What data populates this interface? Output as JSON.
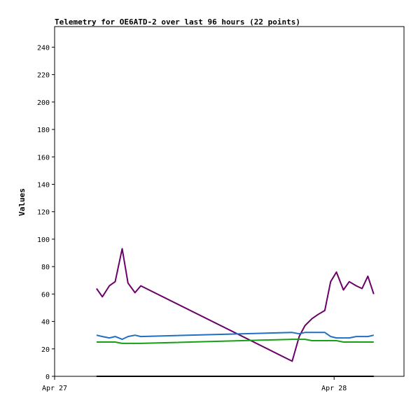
{
  "chart_data": {
    "type": "line",
    "title": "Telemetry for OE6ATD-2 over last 96 hours (22 points)",
    "xlabel": "",
    "ylabel": "Values",
    "ylim": [
      0,
      255
    ],
    "yticks": [
      0,
      20,
      40,
      60,
      80,
      100,
      120,
      140,
      160,
      180,
      200,
      220,
      240
    ],
    "xlim_hours": [
      0,
      30
    ],
    "xticks": [
      {
        "label": "Apr 27",
        "hour": 0
      },
      {
        "label": "Apr 28",
        "hour": 24
      }
    ],
    "grid": false,
    "series": [
      {
        "color": "#6a006a",
        "points": [
          [
            3.6,
            64
          ],
          [
            4.1,
            58
          ],
          [
            4.7,
            66
          ],
          [
            5.2,
            69
          ],
          [
            5.8,
            93
          ],
          [
            6.3,
            68
          ],
          [
            6.9,
            61
          ],
          [
            7.4,
            66
          ],
          [
            20.4,
            11
          ],
          [
            21.0,
            29
          ],
          [
            21.5,
            37
          ],
          [
            22.1,
            42
          ],
          [
            22.6,
            45
          ],
          [
            23.2,
            48
          ],
          [
            23.7,
            69
          ],
          [
            24.2,
            76
          ],
          [
            24.8,
            63
          ],
          [
            25.3,
            69
          ],
          [
            25.9,
            66
          ],
          [
            26.4,
            64
          ],
          [
            26.9,
            73
          ],
          [
            27.4,
            60
          ]
        ]
      },
      {
        "color": "#1f6fc4",
        "points": [
          [
            3.6,
            30
          ],
          [
            4.1,
            29
          ],
          [
            4.7,
            28
          ],
          [
            5.2,
            29
          ],
          [
            5.8,
            27
          ],
          [
            6.3,
            29
          ],
          [
            6.9,
            30
          ],
          [
            7.4,
            29
          ],
          [
            20.4,
            32
          ],
          [
            21.0,
            31
          ],
          [
            21.5,
            32
          ],
          [
            22.1,
            32
          ],
          [
            22.6,
            32
          ],
          [
            23.2,
            32
          ],
          [
            23.7,
            29
          ],
          [
            24.2,
            28
          ],
          [
            24.8,
            28
          ],
          [
            25.3,
            28
          ],
          [
            25.9,
            29
          ],
          [
            26.4,
            29
          ],
          [
            26.9,
            29
          ],
          [
            27.4,
            30
          ]
        ]
      },
      {
        "color": "#14a014",
        "points": [
          [
            3.6,
            25
          ],
          [
            4.1,
            25
          ],
          [
            4.7,
            25
          ],
          [
            5.2,
            25
          ],
          [
            5.8,
            24
          ],
          [
            6.3,
            24
          ],
          [
            6.9,
            24
          ],
          [
            7.4,
            24
          ],
          [
            20.4,
            27
          ],
          [
            21.0,
            27
          ],
          [
            21.5,
            27
          ],
          [
            22.1,
            26
          ],
          [
            22.6,
            26
          ],
          [
            23.2,
            26
          ],
          [
            23.7,
            26
          ],
          [
            24.2,
            26
          ],
          [
            24.8,
            25
          ],
          [
            25.3,
            25
          ],
          [
            25.9,
            25
          ],
          [
            26.4,
            25
          ],
          [
            26.9,
            25
          ],
          [
            27.4,
            25
          ]
        ]
      },
      {
        "color": "#000000",
        "points": [
          [
            3.6,
            0
          ],
          [
            7.4,
            0
          ],
          [
            20.4,
            0
          ],
          [
            27.4,
            0
          ]
        ]
      }
    ]
  }
}
